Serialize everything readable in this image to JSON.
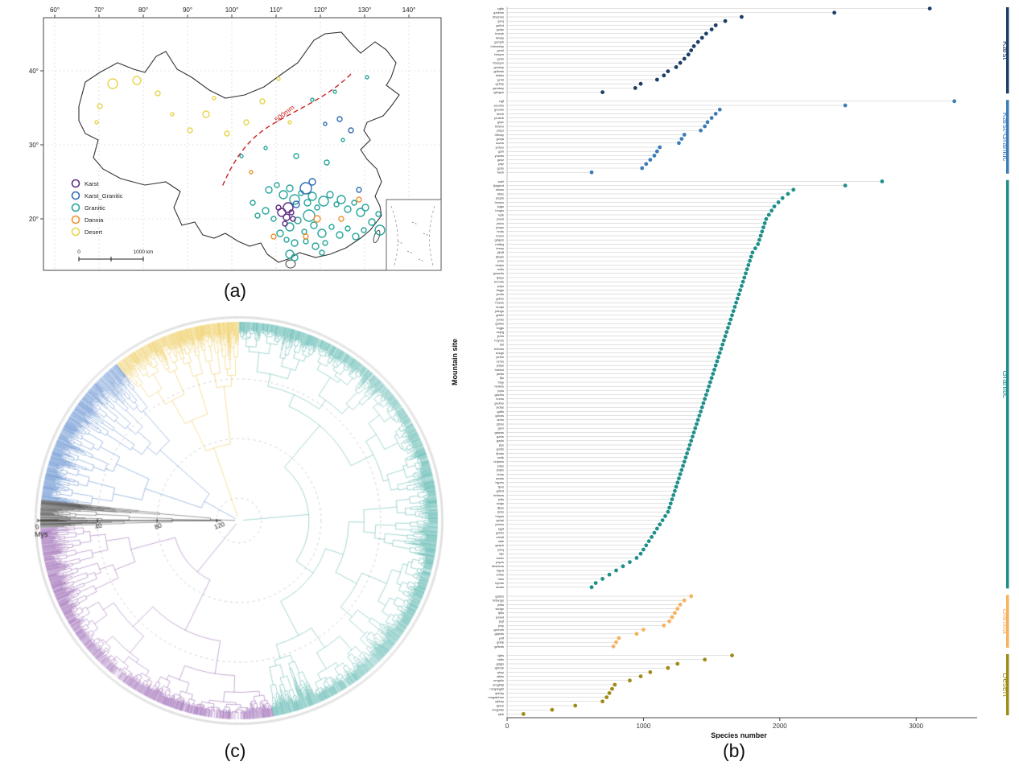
{
  "figure": {
    "captions": {
      "a": "(a)",
      "b": "(b)",
      "c": "(c)"
    }
  },
  "map": {
    "x_ticks": [
      "60°",
      "70°",
      "80°",
      "90°",
      "100°",
      "110°",
      "120°",
      "130°",
      "140°"
    ],
    "y_ticks": [
      "40°",
      "30°",
      "20°"
    ],
    "isohyet_label": "500mm",
    "isohyet_color": "#cc2222",
    "scale_zero": "0",
    "scale_label": "1000 km",
    "legend": [
      {
        "label": "Karst",
        "color": "#5c2d82"
      },
      {
        "label": "Karst_Granitic",
        "color": "#2f6db4"
      },
      {
        "label": "Granitic",
        "color": "#27a59c"
      },
      {
        "label": "Danxia",
        "color": "#f09030"
      },
      {
        "label": "Desert",
        "color": "#e8d44d"
      }
    ],
    "markers": [
      {
        "c": "Desert",
        "x": 112,
        "y": 100,
        "r": 6
      },
      {
        "c": "Desert",
        "x": 142,
        "y": 96,
        "r": 5
      },
      {
        "c": "Desert",
        "x": 96,
        "y": 128,
        "r": 3
      },
      {
        "c": "Desert",
        "x": 168,
        "y": 112,
        "r": 3
      },
      {
        "c": "Desert",
        "x": 228,
        "y": 138,
        "r": 4
      },
      {
        "c": "Desert",
        "x": 278,
        "y": 148,
        "r": 3
      },
      {
        "c": "Desert",
        "x": 298,
        "y": 122,
        "r": 3
      },
      {
        "c": "Desert",
        "x": 254,
        "y": 162,
        "r": 3
      },
      {
        "c": "Desert",
        "x": 208,
        "y": 158,
        "r": 3
      },
      {
        "c": "Desert",
        "x": 186,
        "y": 138,
        "r": 2
      },
      {
        "c": "Desert",
        "x": 318,
        "y": 94,
        "r": 2
      },
      {
        "c": "Desert",
        "x": 332,
        "y": 148,
        "r": 2
      },
      {
        "c": "Desert",
        "x": 92,
        "y": 148,
        "r": 2
      },
      {
        "c": "Desert",
        "x": 238,
        "y": 118,
        "r": 2
      },
      {
        "c": "Granitic",
        "x": 306,
        "y": 232,
        "r": 4
      },
      {
        "c": "Granitic",
        "x": 316,
        "y": 226,
        "r": 3
      },
      {
        "c": "Granitic",
        "x": 324,
        "y": 238,
        "r": 5
      },
      {
        "c": "Granitic",
        "x": 332,
        "y": 230,
        "r": 4
      },
      {
        "c": "Granitic",
        "x": 338,
        "y": 244,
        "r": 6
      },
      {
        "c": "Granitic",
        "x": 346,
        "y": 236,
        "r": 3
      },
      {
        "c": "Granitic",
        "x": 354,
        "y": 248,
        "r": 4
      },
      {
        "c": "Granitic",
        "x": 360,
        "y": 240,
        "r": 5
      },
      {
        "c": "Granitic",
        "x": 366,
        "y": 254,
        "r": 3
      },
      {
        "c": "Granitic",
        "x": 374,
        "y": 246,
        "r": 6
      },
      {
        "c": "Granitic",
        "x": 382,
        "y": 238,
        "r": 4
      },
      {
        "c": "Granitic",
        "x": 390,
        "y": 250,
        "r": 3
      },
      {
        "c": "Granitic",
        "x": 396,
        "y": 244,
        "r": 5
      },
      {
        "c": "Granitic",
        "x": 404,
        "y": 256,
        "r": 4
      },
      {
        "c": "Granitic",
        "x": 412,
        "y": 248,
        "r": 3
      },
      {
        "c": "Granitic",
        "x": 420,
        "y": 260,
        "r": 5
      },
      {
        "c": "Granitic",
        "x": 426,
        "y": 254,
        "r": 4
      },
      {
        "c": "Granitic",
        "x": 356,
        "y": 264,
        "r": 7
      },
      {
        "c": "Granitic",
        "x": 342,
        "y": 270,
        "r": 4
      },
      {
        "c": "Granitic",
        "x": 332,
        "y": 278,
        "r": 5
      },
      {
        "c": "Granitic",
        "x": 350,
        "y": 284,
        "r": 3
      },
      {
        "c": "Granitic",
        "x": 362,
        "y": 276,
        "r": 4
      },
      {
        "c": "Granitic",
        "x": 372,
        "y": 286,
        "r": 5
      },
      {
        "c": "Granitic",
        "x": 384,
        "y": 278,
        "r": 3
      },
      {
        "c": "Granitic",
        "x": 394,
        "y": 288,
        "r": 4
      },
      {
        "c": "Granitic",
        "x": 404,
        "y": 280,
        "r": 3
      },
      {
        "c": "Granitic",
        "x": 414,
        "y": 290,
        "r": 4
      },
      {
        "c": "Granitic",
        "x": 424,
        "y": 282,
        "r": 3
      },
      {
        "c": "Granitic",
        "x": 434,
        "y": 272,
        "r": 4
      },
      {
        "c": "Granitic",
        "x": 442,
        "y": 262,
        "r": 3
      },
      {
        "c": "Granitic",
        "x": 302,
        "y": 258,
        "r": 4
      },
      {
        "c": "Granitic",
        "x": 312,
        "y": 268,
        "r": 3
      },
      {
        "c": "Granitic",
        "x": 320,
        "y": 286,
        "r": 4
      },
      {
        "c": "Granitic",
        "x": 328,
        "y": 294,
        "r": 3
      },
      {
        "c": "Granitic",
        "x": 338,
        "y": 298,
        "r": 4
      },
      {
        "c": "Granitic",
        "x": 352,
        "y": 296,
        "r": 3
      },
      {
        "c": "Granitic",
        "x": 364,
        "y": 302,
        "r": 4
      },
      {
        "c": "Granitic",
        "x": 376,
        "y": 298,
        "r": 3
      },
      {
        "c": "Granitic",
        "x": 332,
        "y": 312,
        "r": 5
      },
      {
        "c": "Granitic",
        "x": 338,
        "y": 316,
        "r": 4
      },
      {
        "c": "Granitic",
        "x": 444,
        "y": 282,
        "r": 6
      },
      {
        "c": "Granitic",
        "x": 372,
        "y": 310,
        "r": 3
      },
      {
        "c": "Granitic",
        "x": 292,
        "y": 264,
        "r": 3
      },
      {
        "c": "Granitic",
        "x": 286,
        "y": 248,
        "r": 3
      },
      {
        "c": "Granitic",
        "x": 360,
        "y": 120,
        "r": 2
      },
      {
        "c": "Granitic",
        "x": 388,
        "y": 110,
        "r": 2
      },
      {
        "c": "Granitic",
        "x": 428,
        "y": 92,
        "r": 2
      },
      {
        "c": "Granitic",
        "x": 302,
        "y": 180,
        "r": 2
      },
      {
        "c": "Granitic",
        "x": 340,
        "y": 190,
        "r": 3
      },
      {
        "c": "Granitic",
        "x": 378,
        "y": 198,
        "r": 3
      },
      {
        "c": "Granitic",
        "x": 272,
        "y": 190,
        "r": 2
      },
      {
        "c": "Granitic",
        "x": 398,
        "y": 170,
        "r": 2
      },
      {
        "c": "Granitic",
        "x": 468,
        "y": 262,
        "r": 2
      },
      {
        "c": "Granitic",
        "x": 486,
        "y": 300,
        "r": 2
      },
      {
        "c": "Karst",
        "x": 322,
        "y": 260,
        "r": 5
      },
      {
        "c": "Karst",
        "x": 328,
        "y": 266,
        "r": 4
      },
      {
        "c": "Karst",
        "x": 334,
        "y": 260,
        "r": 3
      },
      {
        "c": "Karst",
        "x": 330,
        "y": 254,
        "r": 6
      },
      {
        "c": "Karst",
        "x": 336,
        "y": 268,
        "r": 3
      },
      {
        "c": "Karst",
        "x": 318,
        "y": 254,
        "r": 3
      },
      {
        "c": "Karst",
        "x": 326,
        "y": 274,
        "r": 3
      },
      {
        "c": "Karst_Granitic",
        "x": 352,
        "y": 230,
        "r": 7
      },
      {
        "c": "Karst_Granitic",
        "x": 394,
        "y": 144,
        "r": 3
      },
      {
        "c": "Karst_Granitic",
        "x": 360,
        "y": 222,
        "r": 4
      },
      {
        "c": "Karst_Granitic",
        "x": 408,
        "y": 158,
        "r": 3
      },
      {
        "c": "Karst_Granitic",
        "x": 340,
        "y": 250,
        "r": 4
      },
      {
        "c": "Karst_Granitic",
        "x": 418,
        "y": 232,
        "r": 3
      },
      {
        "c": "Karst_Granitic",
        "x": 376,
        "y": 150,
        "r": 2
      },
      {
        "c": "Danxia",
        "x": 366,
        "y": 268,
        "r": 4
      },
      {
        "c": "Danxia",
        "x": 312,
        "y": 290,
        "r": 3
      },
      {
        "c": "Danxia",
        "x": 396,
        "y": 268,
        "r": 3
      },
      {
        "c": "Danxia",
        "x": 352,
        "y": 290,
        "r": 3
      },
      {
        "c": "Danxia",
        "x": 418,
        "y": 244,
        "r": 3
      },
      {
        "c": "Danxia",
        "x": 284,
        "y": 210,
        "r": 2
      }
    ]
  },
  "tree": {
    "axis_label": "Mys",
    "axis_ticks": [
      0,
      40,
      80,
      120
    ],
    "max_age": 135,
    "clades": [
      {
        "name": "clade-teal",
        "color": "#2aa198",
        "a0": -90,
        "a1": 80,
        "density": 5
      },
      {
        "name": "clade-purple",
        "color": "#7d3b9e",
        "a0": 80,
        "a1": 178,
        "density": 5
      },
      {
        "name": "clade-black",
        "color": "#151515",
        "a0": 178,
        "a1": 186,
        "density": 5
      },
      {
        "name": "clade-blue",
        "color": "#2f6abf",
        "a0": 186,
        "a1": 232,
        "density": 5
      },
      {
        "name": "clade-yellow",
        "color": "#e8b820",
        "a0": 232,
        "a1": 270,
        "density": 4.5
      }
    ]
  },
  "chart_data": {
    "type": "scatter",
    "subtype": "lollipop-dot-plot",
    "title": "",
    "xlabel": "Species number",
    "ylabel": "Mountain site",
    "xlim": [
      0,
      3400
    ],
    "x_ticks": [
      0,
      1000,
      2000,
      3000
    ],
    "legend_position": "right-group-bars",
    "groups": [
      {
        "name": "Karst",
        "color": "#1c3e66",
        "sites": {
          "labels": [
            "cqjfs",
            "gzdbsh",
            "hbdzms",
            "gxrq",
            "gzfbd",
            "gzlps",
            "hnxqh",
            "hnwly",
            "gzmyh",
            "hnlxwshy",
            "gxml",
            "hbsym",
            "gxhs",
            "hbssym",
            "gzmlsy",
            "gdlmsk",
            "dzkks",
            "gzml",
            "gzhsy",
            "gzmbsy",
            "gzbgzs"
          ],
          "values": [
            3100,
            2400,
            1720,
            1600,
            1530,
            1500,
            1460,
            1430,
            1400,
            1370,
            1350,
            1330,
            1300,
            1270,
            1240,
            1180,
            1150,
            1100,
            980,
            940,
            700
          ]
        }
      },
      {
        "name": "Karst-Granitic",
        "color": "#3e7cb8",
        "sites": {
          "labels": [
            "cqjf",
            "scemls",
            "gxcwls",
            "hbhh",
            "yruzbb",
            "gxyc",
            "hrfshn",
            "ynjcs",
            "hfhwly",
            "gzzja",
            "sczzs",
            "ynhzs",
            "gzlh",
            "ynwbs",
            "gzsz",
            "ynjz",
            "gzds",
            "fwsh"
          ],
          "values": [
            3280,
            2480,
            1560,
            1530,
            1500,
            1470,
            1450,
            1420,
            1300,
            1280,
            1260,
            1120,
            1100,
            1080,
            1050,
            1020,
            990,
            620
          ]
        }
      },
      {
        "name": "Granitic",
        "color": "#1f8f8a",
        "sites": {
          "labels": [
            "sdni",
            "fjdgsbd",
            "sfows",
            "hfsix",
            "jxsyts",
            "hnwzs",
            "jxjgs",
            "hnqys",
            "hylb",
            "jxwsl",
            "ynlcs",
            "jxwys",
            "hnds",
            "hnsm",
            "gdqyls",
            "mdbyj",
            "hnmy",
            "jlkldf",
            "fjwyts",
            "jxsts",
            "dxdys",
            "sxtls",
            "gxswds",
            "fjwys",
            "hnmds",
            "jxlys",
            "hbjgs",
            "jxmfs",
            "gdms",
            "hnshs",
            "hndpl",
            "jxlings",
            "gdefz",
            "jxxbs",
            "gdnks",
            "hnjgs",
            "scjzg",
            "jxms",
            "hnyms",
            "dsl",
            "hnbms",
            "sxcgs",
            "jxnfm",
            "czms",
            "jxdys",
            "hnblwl",
            "jlwds",
            "fjts",
            "hnjy",
            "hndws",
            "jxyls",
            "gdchls",
            "hnms",
            "gxdms",
            "jxdas",
            "gdlfs",
            "gdxds",
            "ahhs",
            "zjtms",
            "gsm",
            "gdwds",
            "gzxls",
            "gzyls",
            "jlys",
            "gxlds",
            "fjmds",
            "sxdk",
            "hnjians",
            "jxfys",
            "ahjhs",
            "hnhs",
            "snwls",
            "bjyms",
            "fjms",
            "gdlxd",
            "hntians",
            "jxtts",
            "sclgs",
            "fjbys",
            "jlcbs",
            "hnyys",
            "gxhpl",
            "jxams",
            "zjgd",
            "gxlzls",
            "s4mtl",
            "sdls",
            "gxsph",
            "ynlcj",
            "sljz",
            "lnshz",
            "ynyzs",
            "hbshens",
            "hljwd",
            "snhls",
            "hets",
            "bymts",
            "snwis"
          ],
          "values": [
            2750,
            2480,
            2100,
            2060,
            2020,
            1990,
            1960,
            1940,
            1920,
            1900,
            1890,
            1880,
            1870,
            1860,
            1850,
            1840,
            1820,
            1800,
            1790,
            1780,
            1770,
            1760,
            1750,
            1740,
            1730,
            1720,
            1710,
            1700,
            1690,
            1680,
            1670,
            1660,
            1650,
            1640,
            1630,
            1620,
            1610,
            1600,
            1590,
            1580,
            1570,
            1560,
            1550,
            1540,
            1530,
            1520,
            1510,
            1500,
            1490,
            1480,
            1470,
            1460,
            1450,
            1440,
            1430,
            1420,
            1410,
            1400,
            1390,
            1380,
            1370,
            1360,
            1350,
            1340,
            1330,
            1320,
            1310,
            1300,
            1290,
            1280,
            1270,
            1260,
            1250,
            1240,
            1230,
            1220,
            1210,
            1200,
            1190,
            1180,
            1160,
            1140,
            1120,
            1100,
            1080,
            1060,
            1040,
            1020,
            1000,
            980,
            950,
            900,
            850,
            800,
            750,
            700,
            650,
            620
          ]
        }
      },
      {
        "name": "Danxia",
        "color": "#f6b25e",
        "sites": {
          "labels": [
            "gddxs",
            "hrllangs",
            "jxlhs",
            "schgx",
            "fjtds",
            "jxswd",
            "jxgf",
            "jxhy",
            "gzchsh",
            "gdjxds",
            "ynlf",
            "gddp",
            "gdfxds"
          ],
          "values": [
            1350,
            1300,
            1270,
            1250,
            1230,
            1210,
            1190,
            1150,
            1000,
            950,
            820,
            800,
            780
          ]
        }
      },
      {
        "name": "Desert",
        "color": "#9f8b15",
        "sites": {
          "labels": [
            "xjkts",
            "xldts",
            "gdgls",
            "xjbhsb",
            "qhsy",
            "xjkks",
            "nmghls",
            "nmgbdjl",
            "nmgdqgbl",
            "qhhhy",
            "nmgalshan",
            "xjklmy",
            "xjbb2",
            "nmgwlts",
            "xjbb"
          ],
          "values": [
            1650,
            1450,
            1250,
            1180,
            1050,
            980,
            900,
            790,
            770,
            750,
            730,
            700,
            500,
            330,
            120
          ]
        }
      }
    ]
  }
}
